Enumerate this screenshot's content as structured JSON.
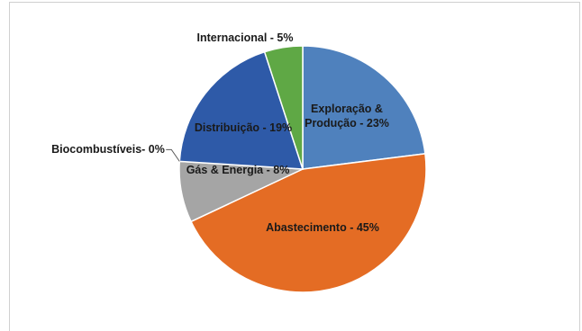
{
  "chart_data": {
    "type": "pie",
    "categories": [
      "Exploração & Produção",
      "Abastecimento",
      "Gás & Energia",
      "Biocombustíveis",
      "Distribuição",
      "Internacional"
    ],
    "values": [
      23,
      45,
      8,
      0,
      19,
      5
    ],
    "unit": "%",
    "colors": [
      "#4f81bd",
      "#e46c24",
      "#a5a5a5",
      "#f2c200",
      "#2e5aa8",
      "#5fa845"
    ],
    "labels": [
      {
        "lines": [
          "Exploração &",
          "Produção - 23%"
        ]
      },
      {
        "lines": [
          "Abastecimento - 45%"
        ]
      },
      {
        "lines": [
          "Gás & Energia - 8%"
        ]
      },
      {
        "lines": [
          "Biocombustíveis- 0%"
        ]
      },
      {
        "lines": [
          "Distribuição - 19%"
        ]
      },
      {
        "lines": [
          "Internacional - 5%"
        ]
      }
    ],
    "start": "top",
    "direction": "clockwise",
    "legend": "none"
  }
}
